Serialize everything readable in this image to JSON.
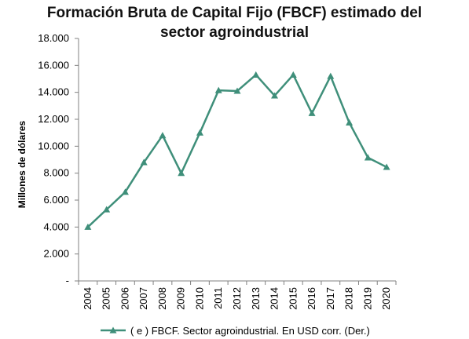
{
  "chart_data": {
    "type": "line",
    "title_line1": "Formación Bruta de Capital Fijo (FBCF) estimado del",
    "title_line2": "sector agroindustrial",
    "ylabel": "Millones de dólares",
    "xlabel": "",
    "ylim": [
      0,
      18000
    ],
    "y_ticks": [
      0,
      2000,
      4000,
      6000,
      8000,
      10000,
      12000,
      14000,
      16000,
      18000
    ],
    "y_tick_labels": [
      "-",
      "2.000",
      "4.000",
      "6.000",
      "8.000",
      "10.000",
      "12.000",
      "14.000",
      "16.000",
      "18.000"
    ],
    "categories": [
      "2004",
      "2005",
      "2006",
      "2007",
      "2008",
      "2009",
      "2010",
      "2011",
      "2012",
      "2013",
      "2014",
      "2015",
      "2016",
      "2017",
      "2018",
      "2019",
      "2020"
    ],
    "series": [
      {
        "name": "( e ) FBCF. Sector agroindustrial. En USD corr. (Der.)",
        "values": [
          4000,
          5300,
          6600,
          8800,
          10800,
          8000,
          11000,
          14150,
          14100,
          15300,
          13750,
          15300,
          12450,
          15200,
          11750,
          9150,
          8450
        ]
      }
    ],
    "grid": false,
    "legend_position": "bottom",
    "colors": {
      "series": "#3f8f7a",
      "axis": "#808080"
    }
  }
}
